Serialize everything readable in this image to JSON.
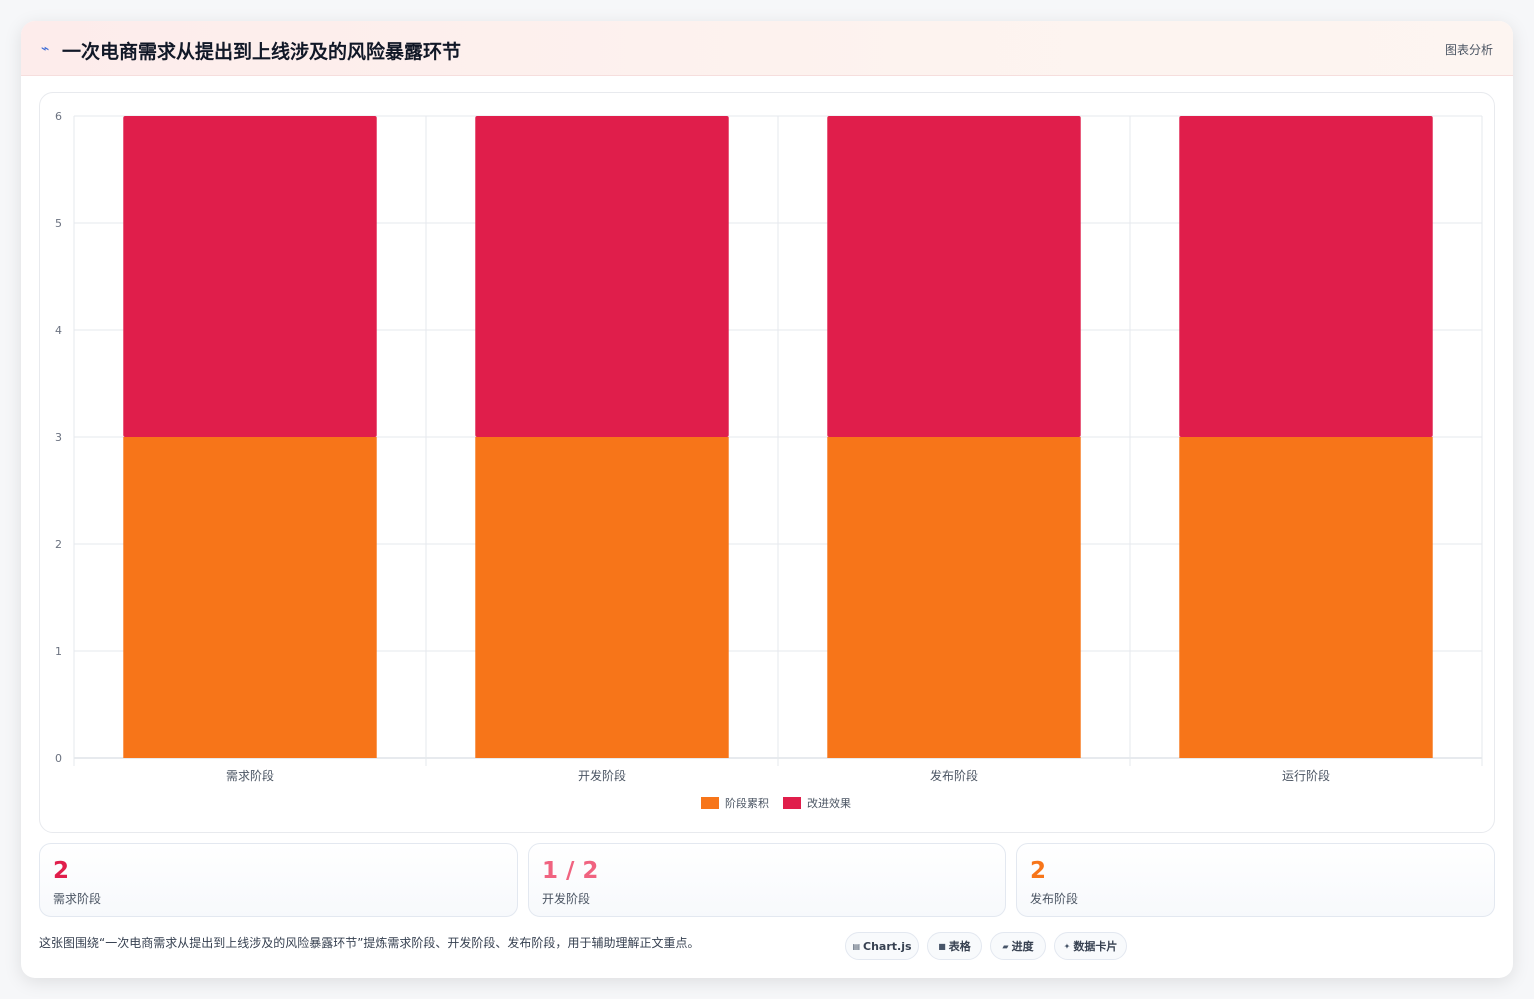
{
  "header": {
    "logo_icon": "lightning-icon",
    "logo_glyph": "⌁",
    "title": "一次电商需求从提出到上线涉及的风险暴露环节",
    "link_label": "图表分析"
  },
  "chart_data": {
    "type": "bar",
    "stacked": true,
    "categories": [
      "需求阶段",
      "开发阶段",
      "发布阶段",
      "运行阶段"
    ],
    "series": [
      {
        "name": "阶段累积",
        "values": [
          3,
          3,
          3,
          3
        ],
        "color": "#f77519"
      },
      {
        "name": "改进效果",
        "values": [
          3,
          3,
          3,
          3
        ],
        "color": "#e01e4b"
      }
    ],
    "ylim": [
      0,
      6
    ],
    "yticks": [
      0,
      1,
      2,
      3,
      4,
      5,
      6
    ],
    "grid": true,
    "legend": "bottom"
  },
  "stats": [
    {
      "value": "2",
      "label": "需求阶段",
      "color": "#e01e4b"
    },
    {
      "value": "1 / 2",
      "label": "开发阶段",
      "color": "#f06380"
    },
    {
      "value": "2",
      "label": "发布阶段",
      "color": "#f77519"
    }
  ],
  "caption": "这张图围绕“一次电商需求从提出到上线涉及的风险暴露环节”提炼需求阶段、开发阶段、发布阶段，用于辅助理解正文重点。",
  "tags": [
    {
      "icon": "chart-icon",
      "glyph": "▤",
      "label": "Chart.js"
    },
    {
      "icon": "table-icon",
      "glyph": "■",
      "label": "表格"
    },
    {
      "icon": "progress-icon",
      "glyph": "▰",
      "label": "进度"
    },
    {
      "icon": "sparkle-icon",
      "glyph": "✦",
      "label": "数据卡片"
    }
  ]
}
